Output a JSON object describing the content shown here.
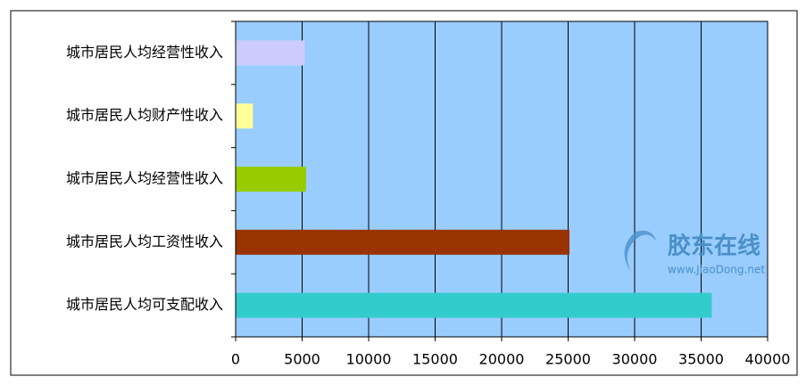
{
  "chart_data": {
    "type": "bar",
    "orientation": "horizontal",
    "categories": [
      "城市居民人均经营性收入",
      "城市居民人均财产性收入",
      "城市居民人均经营性收入",
      "城市居民人均工资性收入",
      "城市居民人均可支配收入"
    ],
    "values": [
      5200,
      1300,
      5300,
      25100,
      35800
    ],
    "colors": [
      "#ccccff",
      "#ffff99",
      "#99cc00",
      "#993300",
      "#33cccc"
    ],
    "xlim": [
      0,
      40000
    ],
    "xticks": [
      0,
      5000,
      10000,
      15000,
      20000,
      25000,
      30000,
      35000,
      40000
    ],
    "grid": true,
    "plot_background": "#99ccff",
    "watermark": {
      "title": "胶东在线",
      "url": "www.JiaoDong.net"
    }
  }
}
